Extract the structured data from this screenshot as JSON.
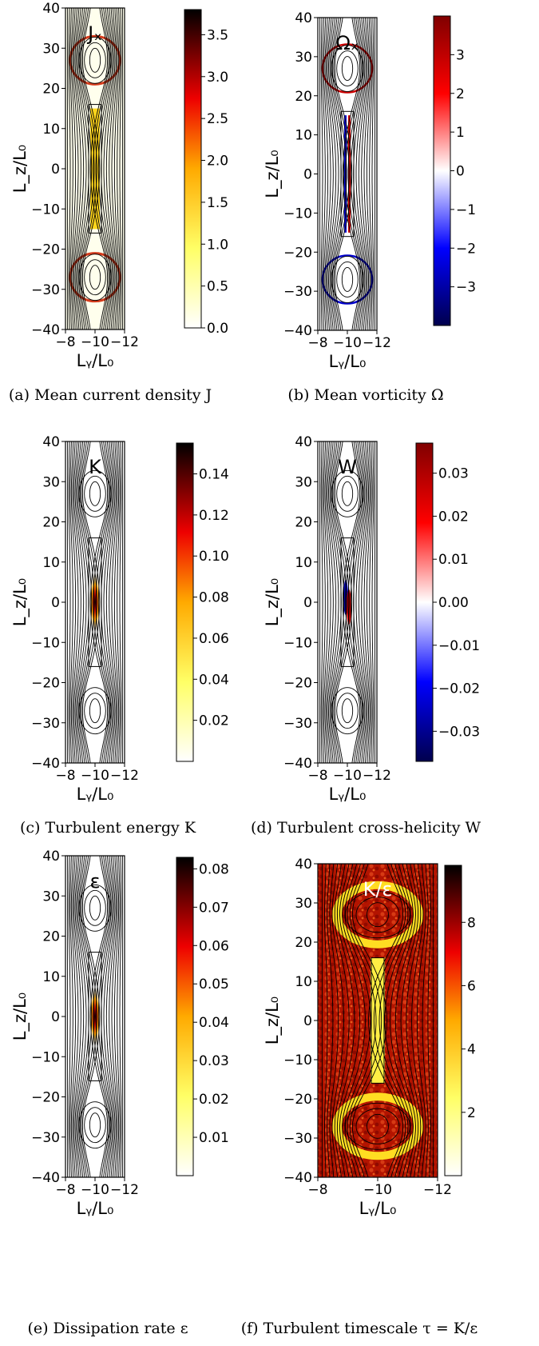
{
  "figure": {
    "panels": [
      {
        "id": "a",
        "caption": "(a) Mean current density J",
        "field_label": "Jₓ",
        "colormap": "hot",
        "cbar_range": [
          0.0,
          3.8
        ],
        "cbar_ticks": [
          "0.0",
          "0.5",
          "1.0",
          "1.5",
          "2.0",
          "2.5",
          "3.0",
          "3.5"
        ]
      },
      {
        "id": "b",
        "caption": "(b) Mean vorticity Ω",
        "field_label": "Ωₓ",
        "colormap": "seismic",
        "cbar_range": [
          -4,
          4
        ],
        "cbar_ticks": [
          "−3",
          "−2",
          "−1",
          "0",
          "1",
          "2",
          "3"
        ]
      },
      {
        "id": "c",
        "caption": "(c) Turbulent energy K",
        "field_label": "K",
        "colormap": "hot",
        "cbar_range": [
          0.0,
          0.155
        ],
        "cbar_ticks": [
          "0.02",
          "0.04",
          "0.06",
          "0.08",
          "0.10",
          "0.12",
          "0.14"
        ]
      },
      {
        "id": "d",
        "caption": "(d) Turbulent cross-helicity W",
        "field_label": "W",
        "colormap": "seismic",
        "cbar_range": [
          -0.037,
          0.037
        ],
        "cbar_ticks": [
          "−0.03",
          "−0.02",
          "−0.01",
          "0.00",
          "0.01",
          "0.02",
          "0.03"
        ]
      },
      {
        "id": "e",
        "caption": "(e) Dissipation rate ε",
        "field_label": "ε",
        "colormap": "hot",
        "cbar_range": [
          0.0,
          0.083
        ],
        "cbar_ticks": [
          "0.01",
          "0.02",
          "0.03",
          "0.04",
          "0.05",
          "0.06",
          "0.07",
          "0.08"
        ]
      },
      {
        "id": "f",
        "caption": "(f) Turbulent timescale τ = K/ε",
        "field_label": "K/ε",
        "colormap": "hot",
        "cbar_range": [
          0,
          9.8
        ],
        "cbar_ticks": [
          "2",
          "4",
          "6",
          "8"
        ]
      }
    ],
    "axes": {
      "xlabel": "Lᵧ/L₀",
      "ylabel": "L_z/L₀",
      "xlim": [
        -8,
        -12
      ],
      "ylim": [
        -40,
        40
      ],
      "xticks": [
        "−8",
        "−10",
        "−12"
      ],
      "yticks": [
        "40",
        "30",
        "20",
        "10",
        "0",
        "−10",
        "−20",
        "−30",
        "−40"
      ]
    }
  },
  "colors": {
    "contour": "#000000",
    "hot_low": "#ffffff",
    "hot_mid": "#ffcc00",
    "hot_high": "#cc0000",
    "hot_max": "#000000",
    "seismic_neg": "#00004d",
    "seismic_pos": "#800000"
  }
}
